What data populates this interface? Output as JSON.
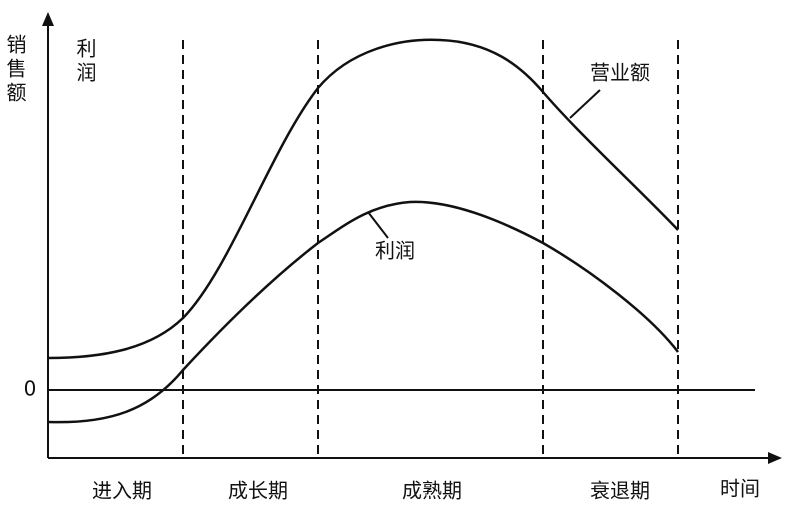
{
  "axes": {
    "y_label": "销售额",
    "x_label": "时间",
    "zero_label": "0"
  },
  "labels": {
    "profit_axis": "利润",
    "sales_curve": "营业额",
    "profit_curve": "利润"
  },
  "stages": [
    "进入期",
    "成长期",
    "成熟期",
    "衰退期"
  ]
}
